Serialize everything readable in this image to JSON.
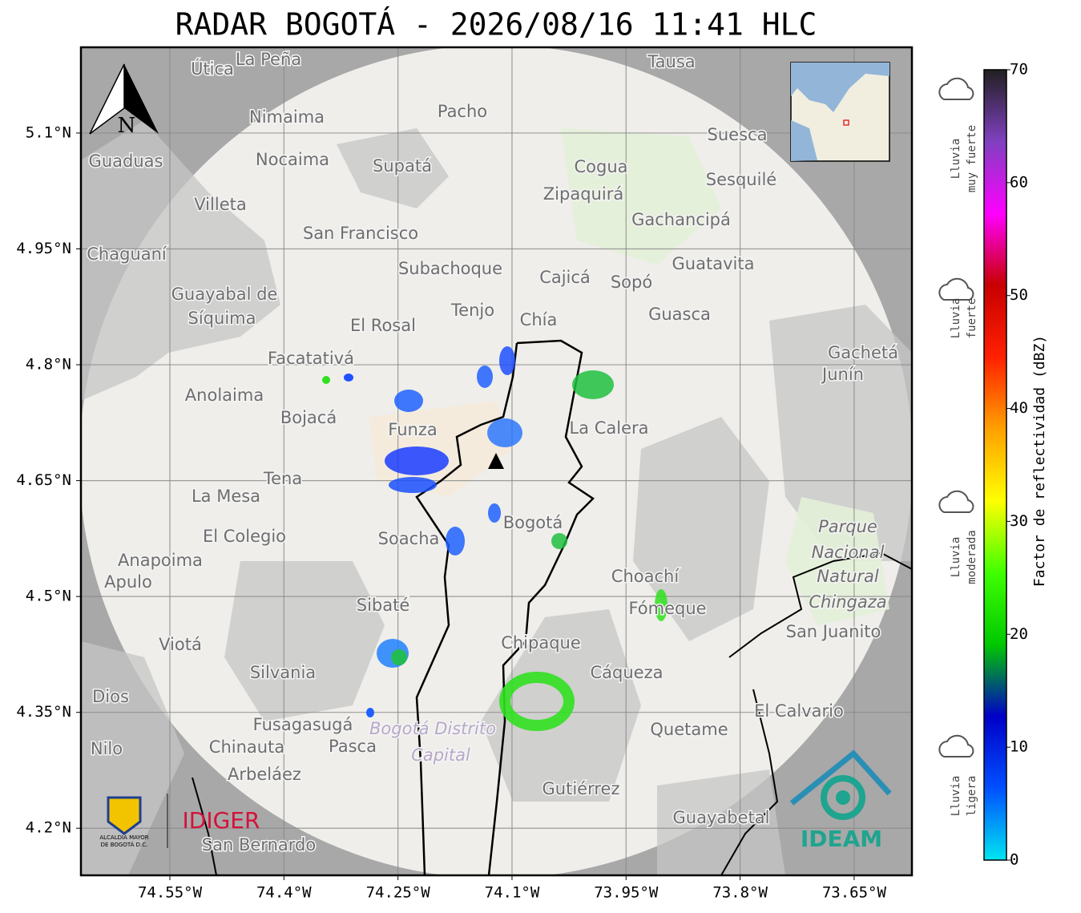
{
  "title": "RADAR BOGOTÁ - 2026/08/16 11:41 HLC",
  "map": {
    "xlim": [
      -74.667,
      -73.574
    ],
    "ylim": [
      4.139,
      5.211
    ],
    "xticks": [
      {
        "value": -74.55,
        "label": "74.55°W"
      },
      {
        "value": -74.4,
        "label": "74.4°W"
      },
      {
        "value": -74.25,
        "label": "74.25°W"
      },
      {
        "value": -74.1,
        "label": "74.1°W"
      },
      {
        "value": -73.95,
        "label": "73.95°W"
      },
      {
        "value": -73.8,
        "label": "73.8°W"
      },
      {
        "value": -73.65,
        "label": "73.65°W"
      }
    ],
    "yticks": [
      {
        "value": 5.1,
        "label": "5.1°N"
      },
      {
        "value": 4.95,
        "label": "4.95°N"
      },
      {
        "value": 4.8,
        "label": "4.8°N"
      },
      {
        "value": 4.65,
        "label": "4.65°N"
      },
      {
        "value": 4.5,
        "label": "4.5°N"
      },
      {
        "value": 4.35,
        "label": "4.35°N"
      },
      {
        "value": 4.2,
        "label": "4.2°N"
      }
    ],
    "grid": true,
    "north_label": "N",
    "places": [
      "La Peña",
      "Útica",
      "Tausa",
      "Nimaima",
      "Pacho",
      "Guaduas",
      "Nocaima",
      "Supatá",
      "Suesca",
      "Cogua",
      "Sesquilé",
      "Villeta",
      "Zipaquirá",
      "Gachancipá",
      "San Francisco",
      "Chaguaní",
      "Subachoque",
      "Cajicá",
      "Sopó",
      "Guatavita",
      "Guayabal de",
      "Síquima",
      "Tenjo",
      "Chía",
      "Guasca",
      "El Rosal",
      "Facatativá",
      "Gachetá",
      "Junín",
      "Anolaima",
      "Bojacá",
      "Funza",
      "La Calera",
      "Tena",
      "La Mesa",
      "Bogotá",
      "Soacha",
      "El Colegio",
      "Anapoima",
      "Apulo",
      "Choachí",
      "Sibaté",
      "Fómeque",
      "Parque",
      "Nacional",
      "Natural",
      "Chingaza",
      "San Juanito",
      "Chipaque",
      "Viotá",
      "Silvania",
      "Cáqueza",
      "Dios",
      "El Calvario",
      "Fusagasugá",
      "Pasca",
      "Quetame",
      "Chinauta",
      "Arbeláez",
      "Gutiérrez",
      "Guayabetal",
      "San Bernardo",
      "Nilo",
      "Bogotá Distrito",
      "Capital"
    ]
  },
  "colorbar": {
    "label": "Factor de reflectividad (dBZ)",
    "lim": [
      0,
      70
    ],
    "ticks": [
      0,
      10,
      20,
      30,
      40,
      50,
      60,
      70
    ],
    "colors": [
      "#00e5f0",
      "#0050ff",
      "#0000c8",
      "#00c800",
      "#40ff00",
      "#ffff00",
      "#ffa000",
      "#ff2000",
      "#c80000",
      "#ff00ff",
      "#8040c0",
      "#202020"
    ]
  },
  "rain_classes": [
    [
      "Lluvia",
      "muy fuerte"
    ],
    [
      "Lluvia",
      "fuerte"
    ],
    [
      "Lluvia",
      "moderada"
    ],
    [
      "Lluvia",
      "ligera"
    ]
  ],
  "logos": {
    "alcaldia": [
      "ALCALDÍA MAYOR",
      "DE BOGOTÁ D.C."
    ],
    "idiger": "IDIGER",
    "ideam": "IDEAM"
  }
}
